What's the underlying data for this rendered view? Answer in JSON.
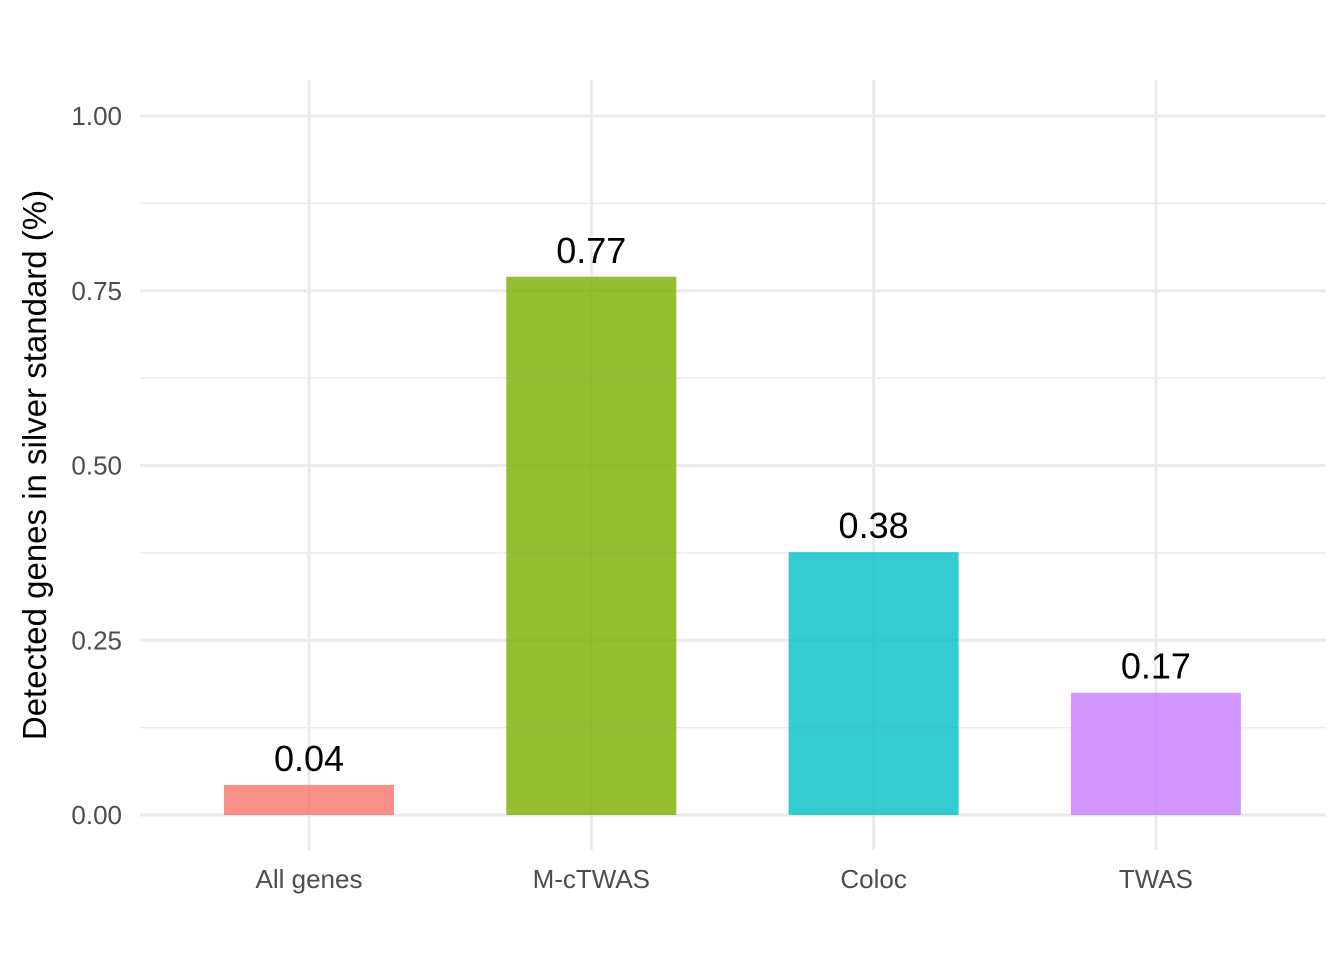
{
  "chart_data": {
    "type": "bar",
    "categories": [
      "All genes",
      "M-cTWAS",
      "Coloc",
      "TWAS"
    ],
    "values": [
      0.043,
      0.77,
      0.376,
      0.175
    ],
    "data_labels": [
      "0.04",
      "0.77",
      "0.38",
      "0.17"
    ],
    "bar_colors": [
      "#f8766d",
      "#7cae00",
      "#00bfc4",
      "#c77cff"
    ],
    "xlabel": "",
    "ylabel": "Detected genes in silver standard (%)",
    "ylim": [
      0,
      1
    ],
    "y_ticks": [
      0,
      0.25,
      0.5,
      0.75,
      1
    ],
    "y_tick_labels": [
      "0.00",
      "0.25",
      "0.50",
      "0.75",
      "1.00"
    ],
    "grid": true,
    "legend": "none"
  }
}
